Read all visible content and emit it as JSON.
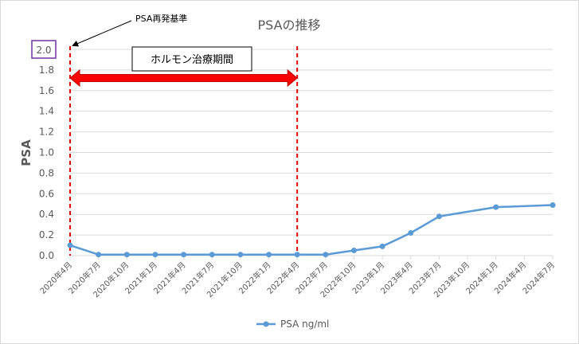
{
  "chart_data": {
    "type": "line",
    "title": "PSAの推移",
    "ylabel": "PSA",
    "xlabel": "",
    "ylim": [
      0,
      2.0
    ],
    "yticks": [
      "0.0",
      "0.2",
      "0.4",
      "0.6",
      "0.8",
      "1.0",
      "1.2",
      "1.4",
      "1.6",
      "1.8",
      "2.0"
    ],
    "categories": [
      "2020年4月",
      "2020年7月",
      "2020年10月",
      "2021年1月",
      "2021年4月",
      "2021年7月",
      "2021年10月",
      "2022年1月",
      "2022年4月",
      "2022年7月",
      "2022年10月",
      "2023年1月",
      "2023年4月",
      "2023年7月",
      "2023年10月",
      "2024年1月",
      "2024年4月",
      "2024年7月"
    ],
    "series": [
      {
        "name": "PSA ng/ml",
        "x": [
          "2020年4月",
          "2020年7月",
          "2020年10月",
          "2021年1月",
          "2021年4月",
          "2021年7月",
          "2021年10月",
          "2022年1月",
          "2022年4月",
          "2022年7月",
          "2022年10月",
          "2023年1月",
          "2023年4月",
          "2023年7月",
          "2024年1月",
          "2024年7月"
        ],
        "values": [
          0.1,
          0.01,
          0.01,
          0.01,
          0.01,
          0.01,
          0.01,
          0.01,
          0.01,
          0.01,
          0.05,
          0.09,
          0.22,
          0.38,
          0.47,
          0.49
        ],
        "color": "#5b9bd5"
      }
    ],
    "legend": "bottom",
    "grid": true,
    "annotations": {
      "threshold_label": "PSA再発基準",
      "threshold_value": "2.0",
      "therapy_label": "ホルモン治療期間",
      "therapy_start": "2020年4月",
      "therapy_end": "2022年4月"
    },
    "colors": {
      "line": "#5b9bd5",
      "arrow": "#ff0000",
      "dashed": "#e00000",
      "threshold_box": "#7030a0",
      "grid": "#d9d9d9",
      "text": "#595959",
      "title": "#595959"
    }
  }
}
